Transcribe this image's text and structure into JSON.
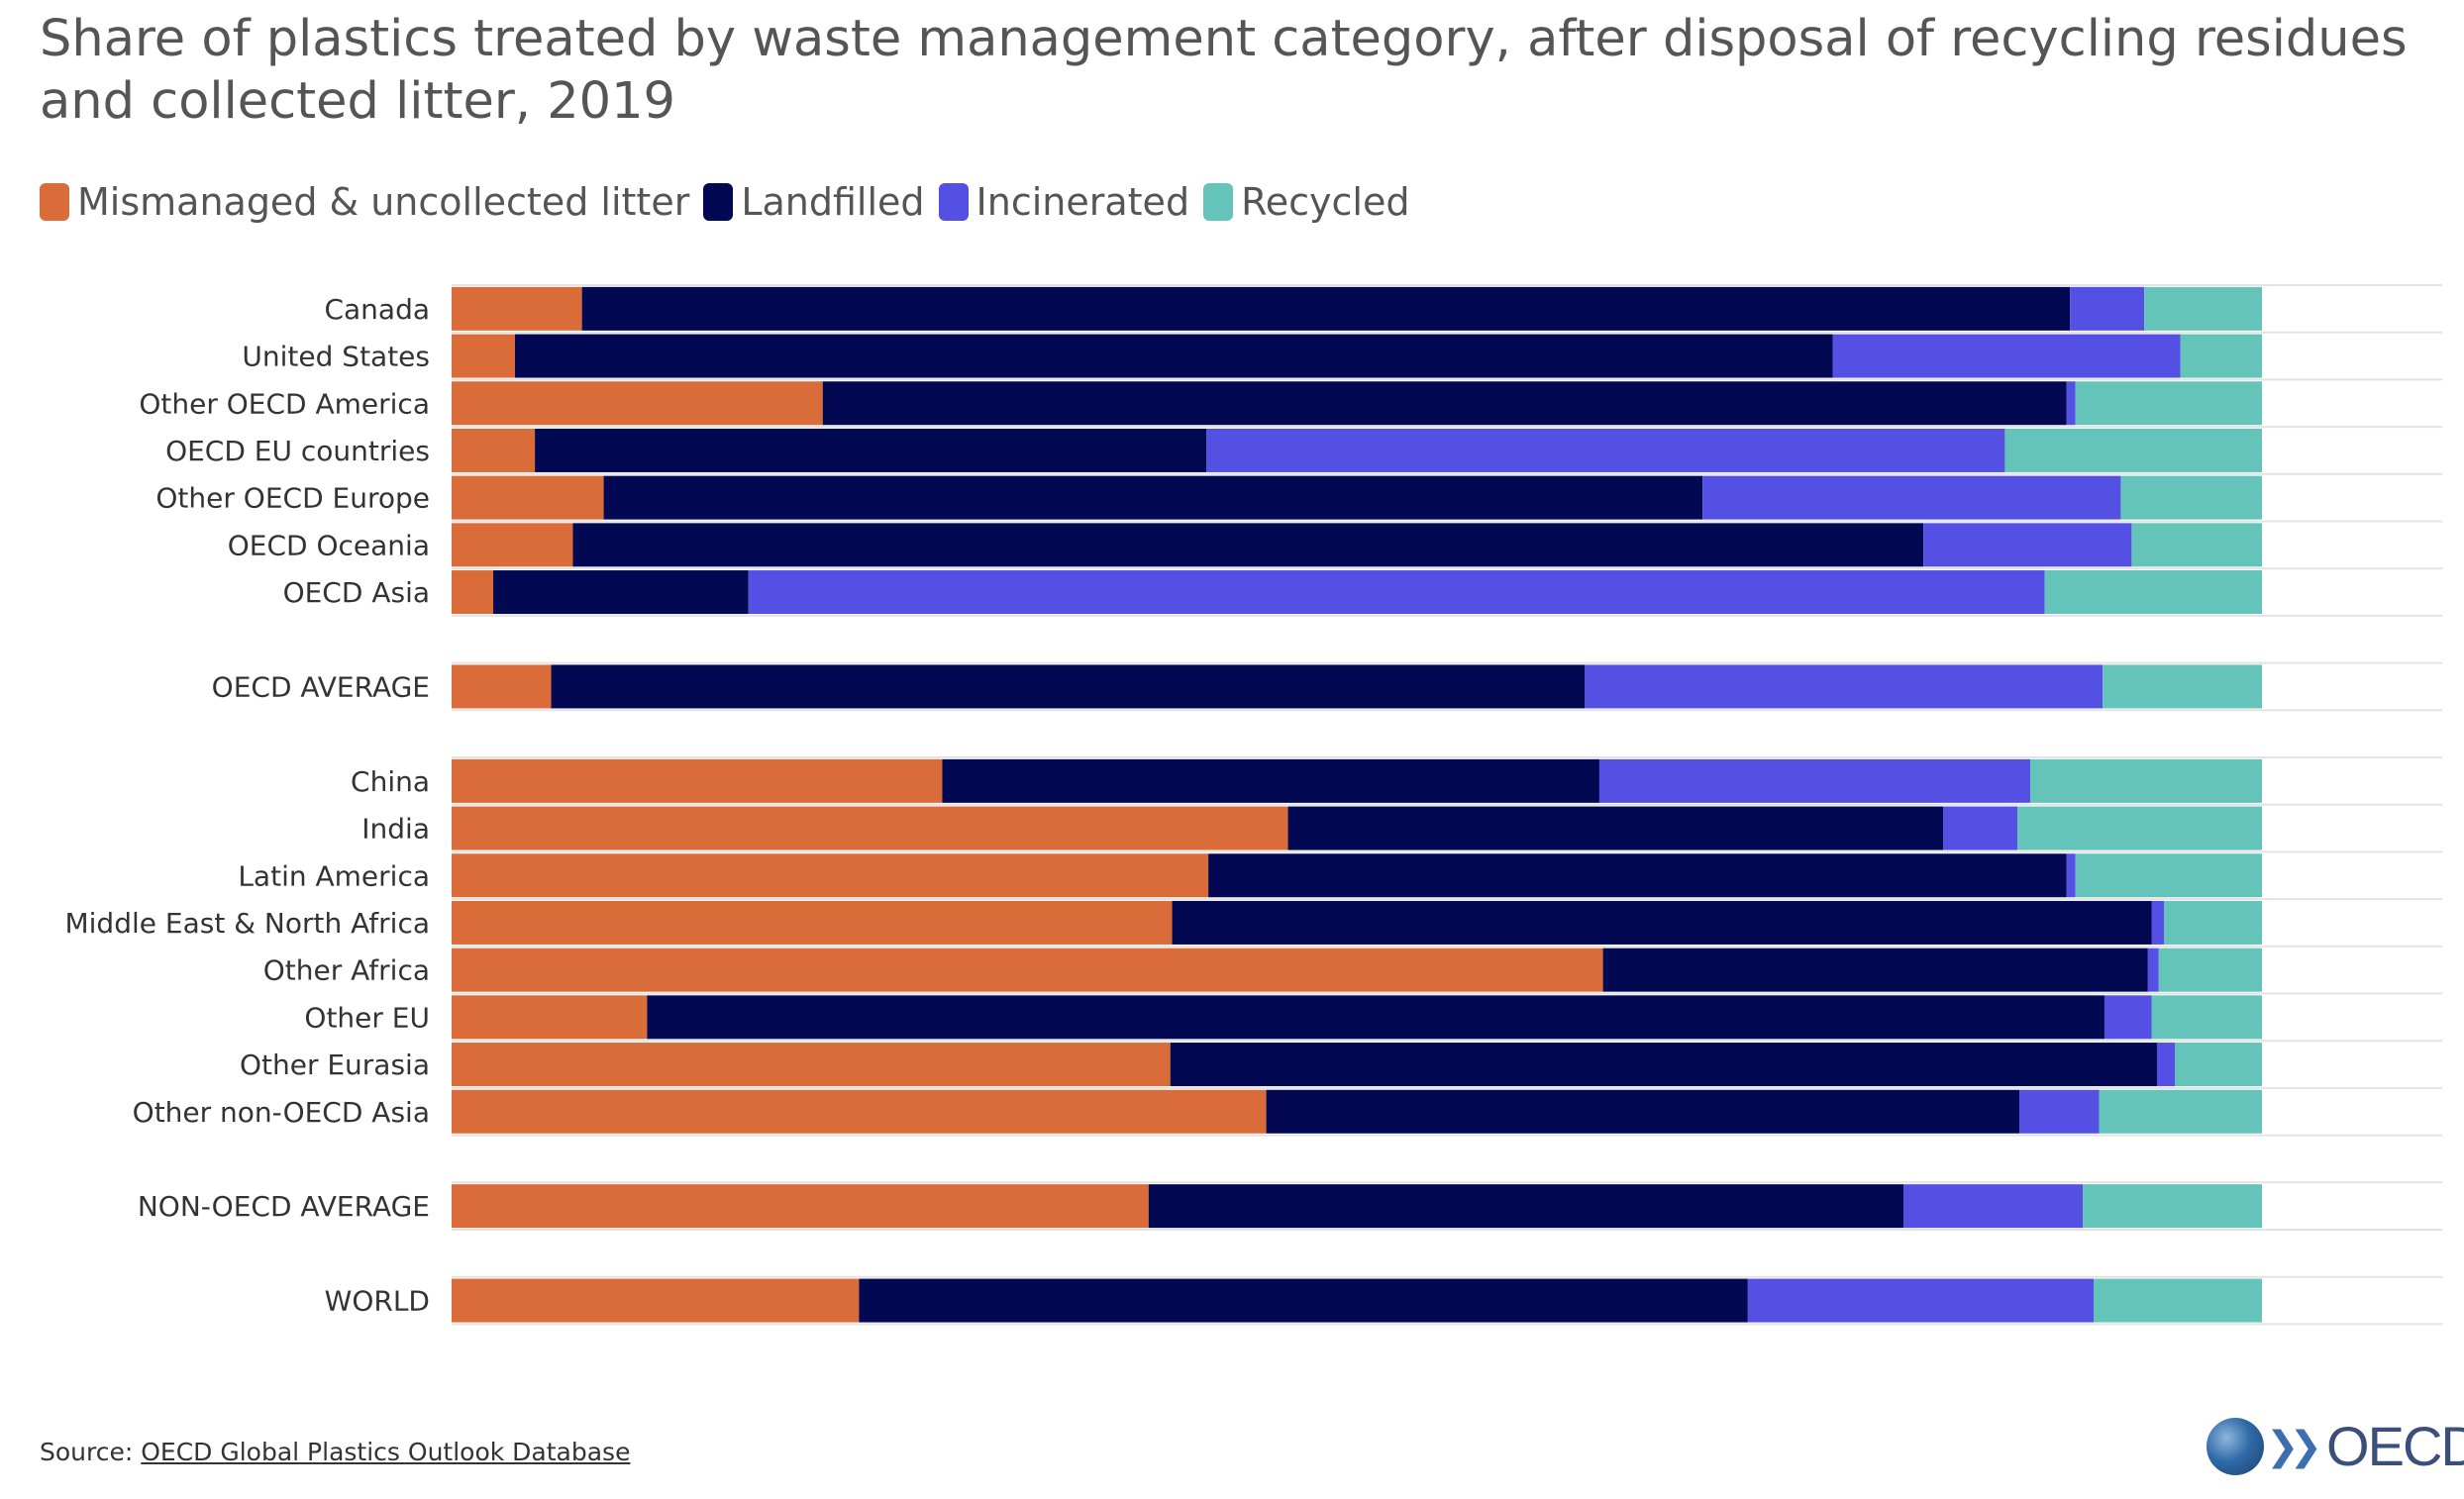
{
  "chart_data": {
    "type": "bar",
    "orientation": "horizontal",
    "stacked": true,
    "title": "Share of plastics treated by waste management category, after disposal of recycling residues and collected litter, 2019",
    "source_prefix": "Source: ",
    "source_link": "OECD Global Plastics Outlook Database",
    "logo_text": "OECD",
    "xlim": [
      0,
      100
    ],
    "grid": true,
    "legend_position": "top-left",
    "categories": [
      "Canada",
      "United States",
      "Other OECD America",
      "OECD EU countries",
      "Other OECD Europe",
      "OECD Oceania",
      "OECD Asia",
      "OECD AVERAGE",
      "China",
      "India",
      "Latin America",
      "Middle East & North Africa",
      "Other Africa",
      "Other EU",
      "Other Eurasia",
      "Other non-OECD Asia",
      "NON-OECD AVERAGE",
      "WORLD"
    ],
    "groups": [
      7,
      1,
      8,
      1,
      1
    ],
    "series": [
      {
        "name": "Mismanaged & uncollected litter",
        "color": "#d96c38",
        "values": [
          7.2,
          3.5,
          20.5,
          4.6,
          8.4,
          6.7,
          2.3,
          5.5,
          27.1,
          46.2,
          41.8,
          39.8,
          63.6,
          10.8,
          39.7,
          45.0,
          38.5,
          22.5
        ]
      },
      {
        "name": "Landfilled",
        "color": "#020851",
        "values": [
          82.2,
          72.8,
          68.7,
          37.1,
          60.7,
          74.6,
          14.1,
          57.1,
          36.3,
          36.2,
          47.4,
          54.1,
          30.1,
          80.5,
          54.5,
          41.6,
          41.7,
          49.1
        ]
      },
      {
        "name": "Incinerated",
        "color": "#5450e4",
        "values": [
          4.1,
          19.2,
          0.5,
          44.1,
          23.1,
          11.5,
          71.6,
          28.6,
          23.8,
          4.1,
          0.5,
          0.7,
          0.6,
          2.6,
          1.0,
          4.4,
          9.9,
          19.1
        ]
      },
      {
        "name": "Recycled",
        "color": "#65c4ba",
        "values": [
          6.5,
          4.5,
          10.3,
          14.2,
          7.8,
          7.2,
          12.0,
          8.8,
          12.8,
          13.5,
          10.3,
          5.4,
          5.7,
          6.1,
          4.8,
          9.0,
          9.9,
          9.3
        ]
      }
    ]
  }
}
